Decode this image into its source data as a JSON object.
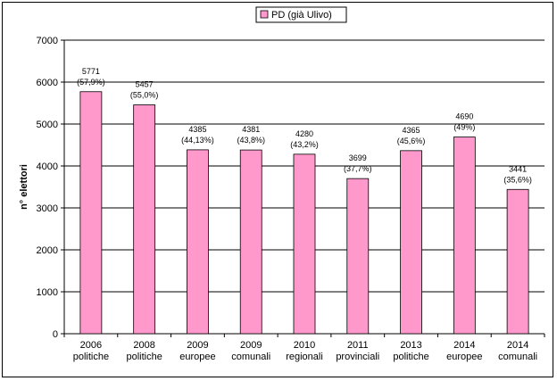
{
  "chart_data": {
    "type": "bar",
    "categories": [
      [
        "2006",
        "politiche"
      ],
      [
        "2008",
        "politiche"
      ],
      [
        "2009",
        "europee"
      ],
      [
        "2009",
        "comunali"
      ],
      [
        "2010",
        "regionali"
      ],
      [
        "2011",
        "provinciali"
      ],
      [
        "2013",
        "politiche"
      ],
      [
        "2014",
        "europee"
      ],
      [
        "2014",
        "comunali"
      ]
    ],
    "series": [
      {
        "name": "PD (già Ulivo)",
        "values": [
          5771,
          5457,
          4385,
          4381,
          4280,
          3699,
          4365,
          4690,
          3441
        ],
        "pct_labels": [
          "(57,9%)",
          "(55,0%)",
          "(44,13%)",
          "(43,8%)",
          "(43,2%)",
          "(37,7%)",
          "(45,6%)",
          "(49%)",
          "(35,6%)"
        ],
        "color": "#ff99cc"
      }
    ],
    "ylabel": "n° elettori",
    "xlabel": "",
    "title": "",
    "ylim": [
      0,
      7000
    ],
    "yticks": [
      0,
      1000,
      2000,
      3000,
      4000,
      5000,
      6000,
      7000
    ],
    "grid": true,
    "legend": "top-center"
  }
}
